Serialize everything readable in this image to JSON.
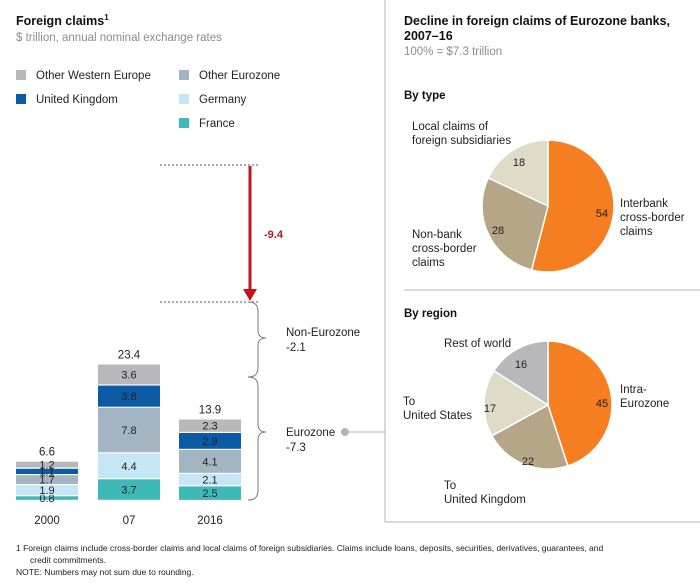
{
  "left_panel": {
    "title": "Foreign claims",
    "title_sup": "1",
    "subtitle": "$ trillion, annual nominal exchange rates",
    "legend": [
      {
        "label": "Other Western Europe",
        "color": "#b8b8ba"
      },
      {
        "label": "Other Eurozone",
        "color": "#a3b4c2"
      },
      {
        "label": "United Kingdom",
        "color": "#0a5aa6"
      },
      {
        "label": "Germany",
        "color": "#c6e6f5"
      },
      {
        "label": "France",
        "color": "#3fb8b8"
      }
    ]
  },
  "chart_data": [
    {
      "type": "bar",
      "stacked": true,
      "title": "Foreign claims",
      "unit": "$ trillion, annual nominal exchange rates",
      "categories": [
        "2000",
        "07",
        "2016"
      ],
      "totals": [
        "6.6",
        "23.4",
        "13.9"
      ],
      "series": [
        {
          "name": "France",
          "values": [
            0.8,
            3.7,
            2.5
          ],
          "labels": [
            "0.8",
            "3.7",
            "2.5"
          ],
          "color": "#3fb8b8",
          "text_color": "#222222"
        },
        {
          "name": "Germany",
          "values": [
            1.9,
            4.4,
            2.1
          ],
          "labels": [
            "1.9",
            "4.4",
            "2.1"
          ],
          "color": "#c6e6f5",
          "text_color": "#222222"
        },
        {
          "name": "Other Eurozone",
          "values": [
            1.7,
            7.8,
            4.1
          ],
          "labels": [
            "1.7",
            "7.8",
            "4.1"
          ],
          "color": "#a3b4c2",
          "text_color": "#222222"
        },
        {
          "name": "United Kingdom",
          "values": [
            1.1,
            3.8,
            2.9
          ],
          "labels": [
            "1.1",
            "3.8",
            "2.9"
          ],
          "color": "#0a5aa6",
          "text_color": "#ffffff"
        },
        {
          "name": "Other Western Europe",
          "values": [
            1.2,
            3.6,
            2.3
          ],
          "labels": [
            "1.2",
            "3.6",
            "2.3"
          ],
          "color": "#b8b8ba",
          "text_color": "#222222"
        }
      ],
      "annotations": {
        "decline": "-9.4",
        "non_eurozone": {
          "label": "Non-Eurozone",
          "value": "-2.1"
        },
        "eurozone": {
          "label": "Eurozone",
          "value": "-7.3"
        }
      }
    },
    {
      "type": "pie",
      "title": "By type",
      "slices": [
        {
          "name": "Interbank cross-border claims",
          "label_lines": [
            "Interbank",
            "cross-border",
            "claims"
          ],
          "value": 54,
          "color": "#f47e20"
        },
        {
          "name": "Non-bank cross-border claims",
          "label_lines": [
            "Non-bank",
            "cross-border",
            "claims"
          ],
          "value": 28,
          "color": "#b5a688"
        },
        {
          "name": "Local claims of foreign subsidiaries",
          "label_lines": [
            "Local claims of",
            "foreign subsidiaries"
          ],
          "value": 18,
          "color": "#dedcc9"
        }
      ]
    },
    {
      "type": "pie",
      "title": "By region",
      "slices": [
        {
          "name": "Intra-Eurozone",
          "label_lines": [
            "Intra-",
            "Eurozone"
          ],
          "value": 45,
          "color": "#f47e20"
        },
        {
          "name": "To United Kingdom",
          "label_lines": [
            "To",
            "United Kingdom"
          ],
          "value": 22,
          "color": "#b5a688"
        },
        {
          "name": "To United States",
          "label_lines": [
            "To",
            "United States"
          ],
          "value": 17,
          "color": "#dedcc9"
        },
        {
          "name": "Rest of world",
          "label_lines": [
            "Rest of world"
          ],
          "value": 16,
          "color": "#b8b8ba"
        }
      ]
    }
  ],
  "right_panel": {
    "title_line1": "Decline in foreign claims of Eurozone banks,",
    "title_line2": "2007–16",
    "subtitle": "100% = $7.3 trillion"
  },
  "footnotes": {
    "line1": "1  Foreign claims include cross-border claims and local claims of foreign subsidiaries. Claims include loans, deposits, securities, derivatives, guarantees, and",
    "line2": "credit commitments.",
    "note": "NOTE: Numbers may not sum due to rounding."
  }
}
